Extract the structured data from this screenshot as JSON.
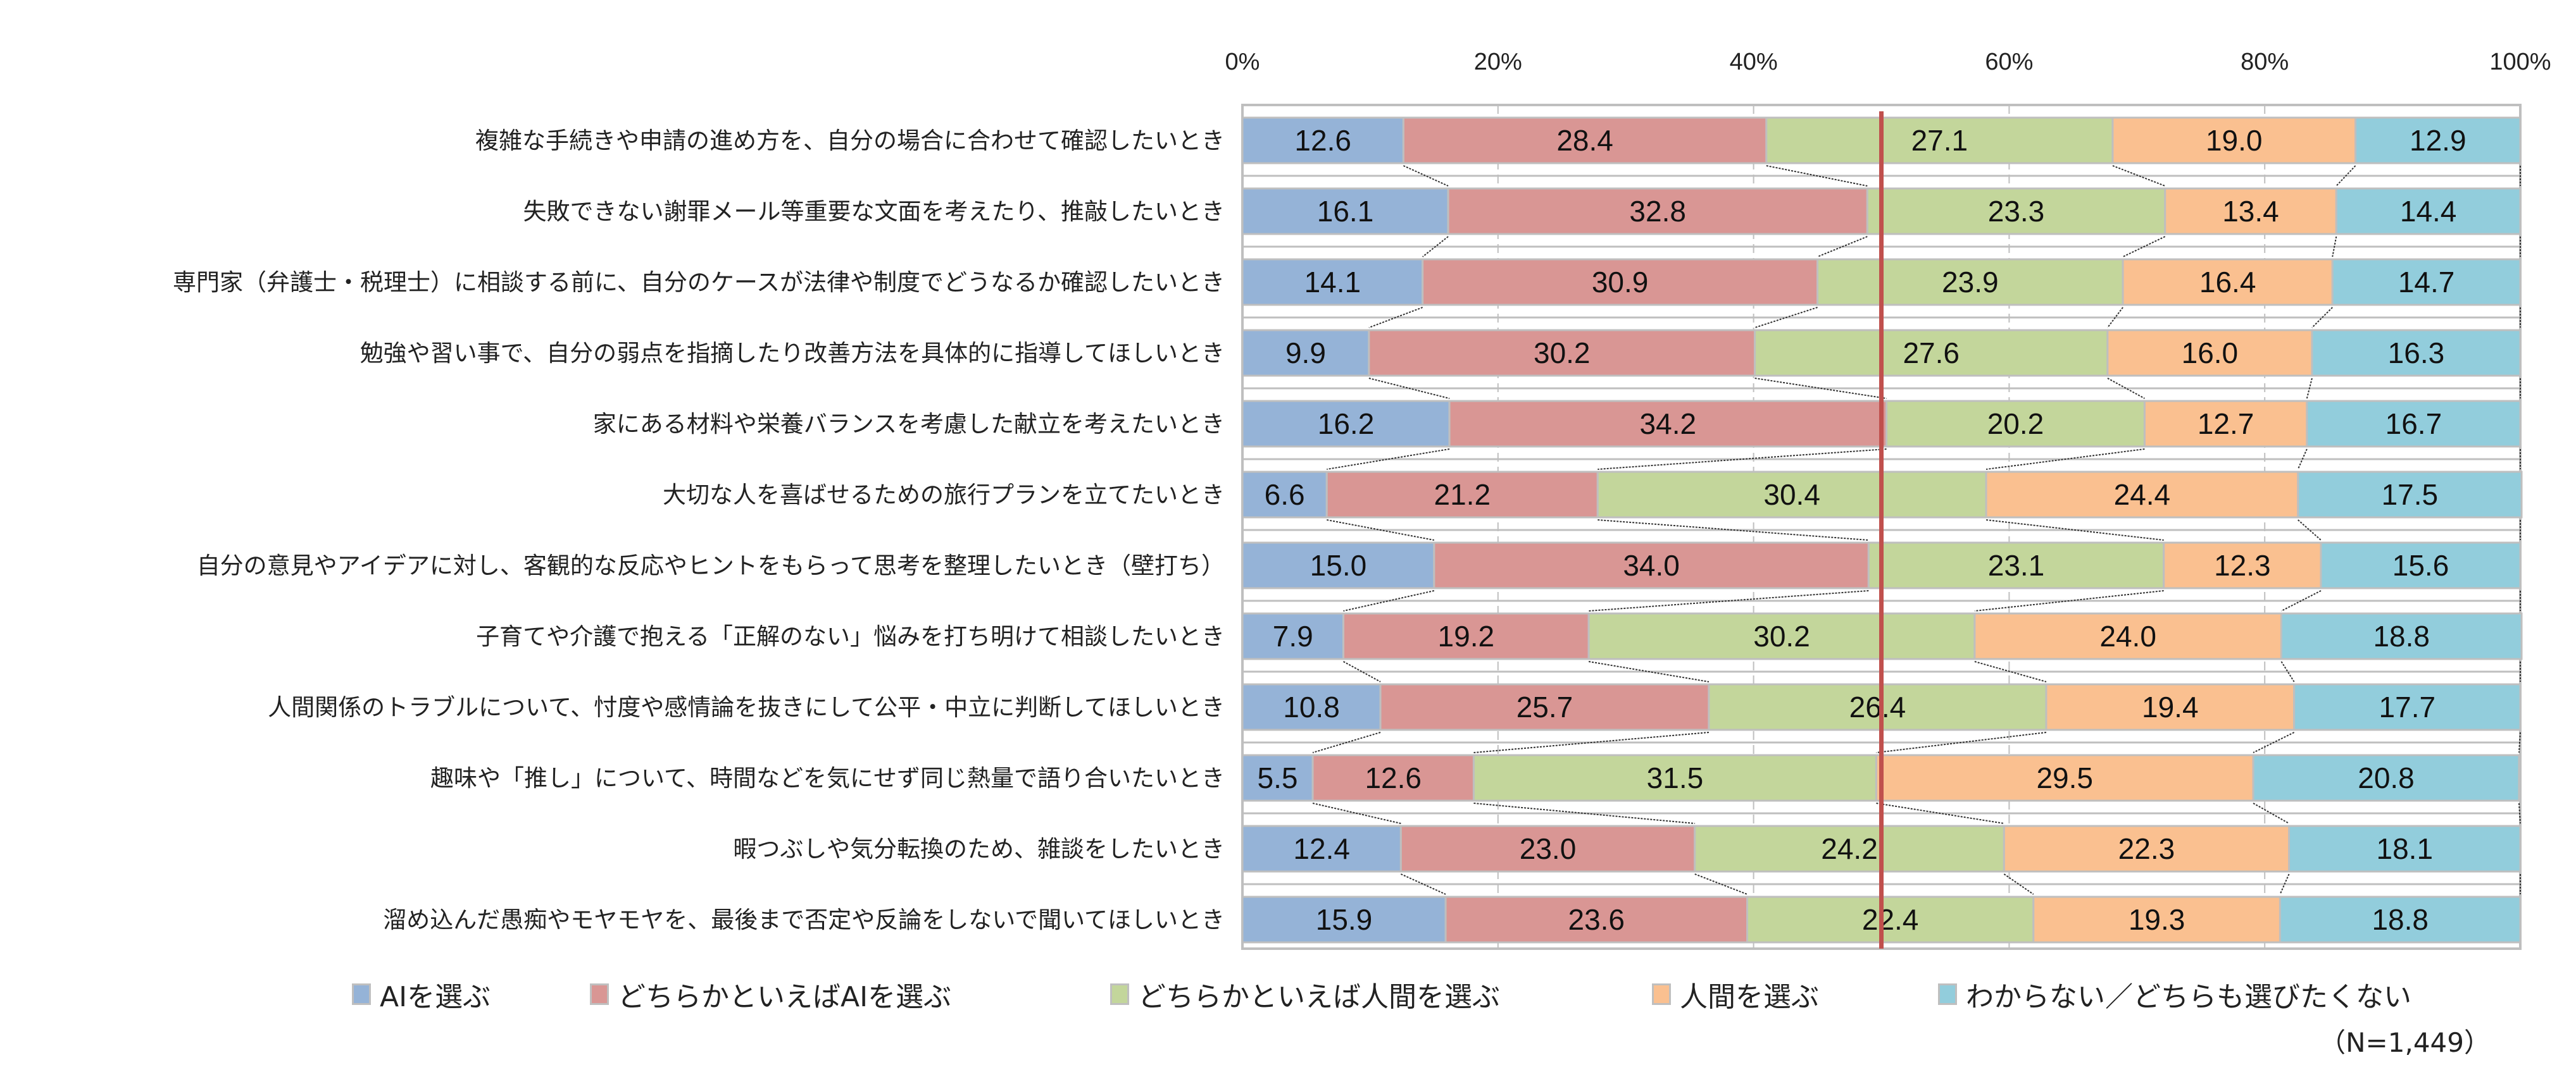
{
  "chart_data": {
    "type": "bar",
    "orientation": "horizontal",
    "stacked": "100%",
    "xlim": [
      0,
      100
    ],
    "x_ticks": [
      "0%",
      "20%",
      "40%",
      "60%",
      "80%",
      "100%"
    ],
    "grid": true,
    "legend_position": "bottom",
    "reference_line": {
      "value": 50,
      "color": "#c0504d"
    },
    "categories": [
      "複雑な手続きや申請の進め方を、自分の場合に合わせて確認したいとき",
      "失敗できない謝罪メール等重要な文面を考えたり、推敲したいとき",
      "専門家（弁護士・税理士）に相談する前に、自分のケースが法律や制度でどうなるか確認したいとき",
      "勉強や習い事で、自分の弱点を指摘したり改善方法を具体的に指導してほしいとき",
      "家にある材料や栄養バランスを考慮した献立を考えたいとき",
      "大切な人を喜ばせるための旅行プランを立てたいとき",
      "自分の意見やアイデアに対し、客観的な反応やヒントをもらって思考を整理したいとき（壁打ち）",
      "子育てや介護で抱える「正解のない」悩みを打ち明けて相談したいとき",
      "人間関係のトラブルについて、忖度や感情論を抜きにして公平・中立に判断してほしいとき",
      "趣味や「推し」について、時間などを気にせず同じ熱量で語り合いたいとき",
      "暇つぶしや気分転換のため、雑談をしたいとき",
      "溜め込んだ愚痴やモヤモヤを、最後まで否定や反論をしないで聞いてほしいとき"
    ],
    "series": [
      {
        "name": "AIを選ぶ",
        "color": "#95b3d7",
        "values": [
          12.6,
          16.1,
          14.1,
          9.9,
          16.2,
          6.6,
          15.0,
          7.9,
          10.8,
          5.5,
          12.4,
          15.9
        ]
      },
      {
        "name": "どちらかといえばAIを選ぶ",
        "color": "#d99694",
        "values": [
          28.4,
          32.8,
          30.9,
          30.2,
          34.2,
          21.2,
          34.0,
          19.2,
          25.7,
          12.6,
          23.0,
          23.6
        ]
      },
      {
        "name": "どちらかといえば人間を選ぶ",
        "color": "#c3d69b",
        "values": [
          27.1,
          23.3,
          23.9,
          27.6,
          20.2,
          30.4,
          23.1,
          30.2,
          26.4,
          31.5,
          24.2,
          22.4
        ]
      },
      {
        "name": "人間を選ぶ",
        "color": "#fac090",
        "values": [
          19.0,
          13.4,
          16.4,
          16.0,
          12.7,
          24.4,
          12.3,
          24.0,
          19.4,
          29.5,
          22.3,
          19.3
        ]
      },
      {
        "name": "わからない／どちらも選びたくない",
        "color": "#92cddc",
        "values": [
          12.9,
          14.4,
          14.7,
          16.3,
          16.7,
          17.5,
          15.6,
          18.8,
          17.7,
          20.8,
          18.1,
          18.8
        ]
      }
    ],
    "note": "（N=1,449）"
  }
}
